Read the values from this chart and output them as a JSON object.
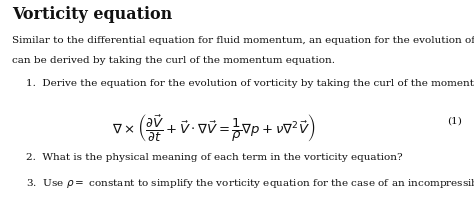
{
  "title": "Vorticity equation",
  "intro_line1": "Similar to the differential equation for fluid momentum, an equation for the evolution of vorticity",
  "intro_line2": "can be derived by taking the curl of the momentum equation.",
  "item1_text": "1.  Derive the equation for the evolution of vorticity by taking the curl of the momentum equation",
  "equation": "$\\nabla \\times \\left( \\dfrac{\\partial \\vec{V}}{\\partial t} + \\vec{V} \\cdot \\nabla\\vec{V} = \\dfrac{1}{\\rho}\\nabla p + \\nu\\nabla^{2}\\vec{V} \\right)$",
  "eq_number": "(1)",
  "item2_text": "2.  What is the physical meaning of each term in the vorticity equation?",
  "item3_text": "3.  Use $\\rho =$ constant to simplify the vorticity equation for the case of an incompressible fluid.",
  "background_color": "#ffffff",
  "text_color": "#111111",
  "title_fontsize": 11.5,
  "body_fontsize": 7.5,
  "eq_fontsize": 9.5
}
